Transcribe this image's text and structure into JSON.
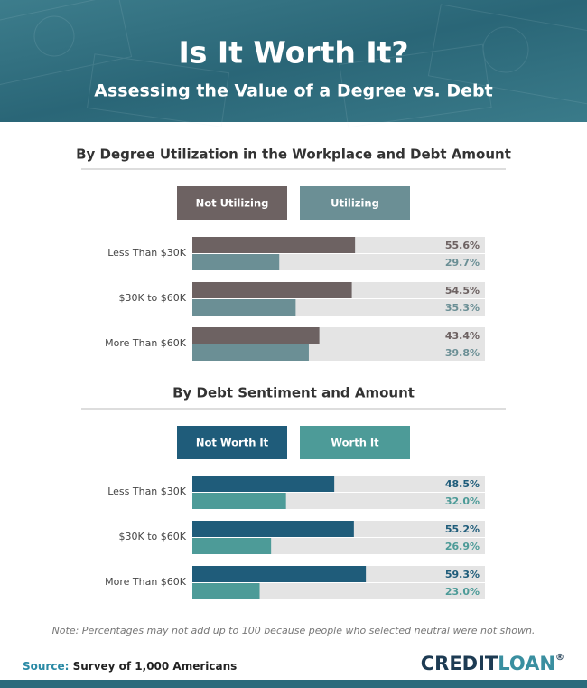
{
  "header": {
    "title": "Is It Worth It?",
    "subtitle": "Assessing the Value of a Degree vs. Debt"
  },
  "chart_data": [
    {
      "type": "bar",
      "orientation": "horizontal",
      "title": "By Degree Utilization in the Workplace and Debt Amount",
      "categories": [
        "Less Than $30K",
        "$30K to $60K",
        "More Than $60K"
      ],
      "xlim": [
        0,
        100
      ],
      "series": [
        {
          "name": "Not Utilizing",
          "color": "#6d6262",
          "values": [
            55.6,
            54.5,
            43.4
          ],
          "value_labels": [
            "55.6%",
            "54.5%",
            "43.4%"
          ]
        },
        {
          "name": "Utilizing",
          "color": "#6b8f95",
          "values": [
            29.7,
            35.3,
            39.8
          ],
          "value_labels": [
            "29.7%",
            "35.3%",
            "39.8%"
          ]
        }
      ]
    },
    {
      "type": "bar",
      "orientation": "horizontal",
      "title": "By Debt Sentiment and Amount",
      "categories": [
        "Less Than $30K",
        "$30K to $60K",
        "More Than $60K"
      ],
      "xlim": [
        0,
        100
      ],
      "series": [
        {
          "name": "Not Worth It",
          "color": "#1f5c7a",
          "values": [
            48.5,
            55.2,
            59.3
          ],
          "value_labels": [
            "48.5%",
            "55.2%",
            "59.3%"
          ]
        },
        {
          "name": "Worth It",
          "color": "#4d9b98",
          "values": [
            32.0,
            26.9,
            23.0
          ],
          "value_labels": [
            "32.0%",
            "26.9%",
            "23.0%"
          ]
        }
      ]
    }
  ],
  "footer": {
    "note": "Note: Percentages may not add up to 100 because people who selected neutral were not shown.",
    "source_label": "Source:",
    "source": "Survey of 1,000 Americans",
    "logo": {
      "credit": "CREDIT",
      "loan": "LOAN",
      "mark": "®"
    }
  }
}
